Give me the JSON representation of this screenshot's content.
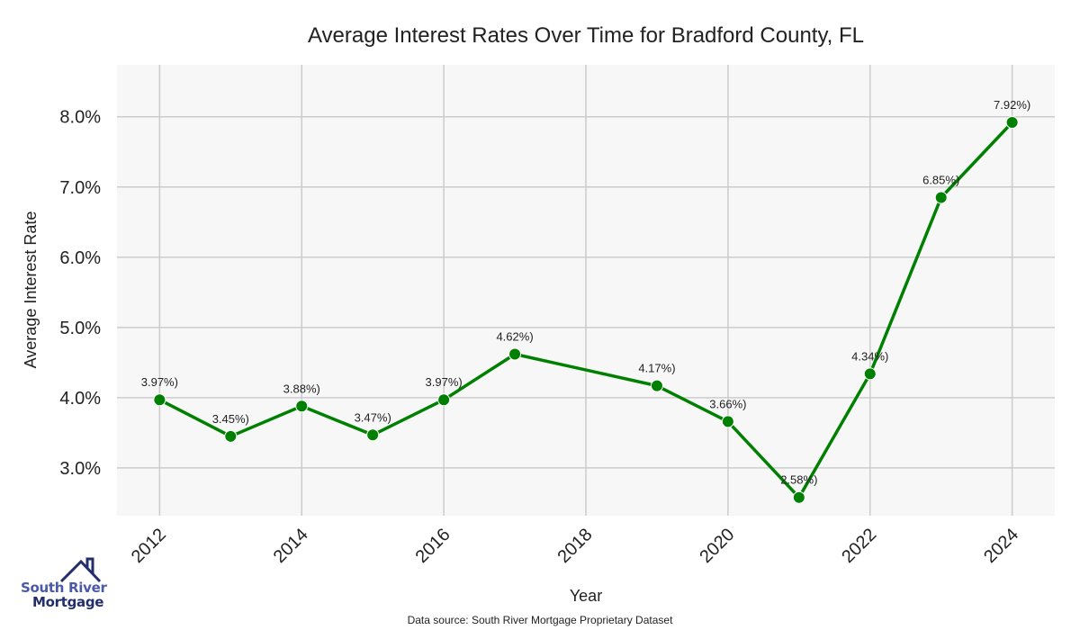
{
  "chart_data": {
    "type": "line",
    "title": "Average Interest Rates Over Time for Bradford County, FL",
    "xlabel": "Year",
    "ylabel": "Average Interest Rate",
    "x": [
      2012,
      2013,
      2014,
      2015,
      2016,
      2017,
      2019,
      2020,
      2021,
      2022,
      2023,
      2024
    ],
    "values": [
      3.97,
      3.45,
      3.88,
      3.47,
      3.97,
      4.62,
      4.17,
      3.66,
      2.58,
      4.34,
      6.85,
      7.92
    ],
    "data_labels": [
      "3.97%)",
      "3.45%)",
      "3.88%)",
      "3.47%)",
      "3.97%)",
      "4.62%)",
      "4.17%)",
      "3.66%)",
      "2.58%)",
      "4.34%)",
      "6.85%)",
      "7.92%)"
    ],
    "xticks": [
      2012,
      2014,
      2016,
      2018,
      2020,
      2022,
      2024
    ],
    "yticks": [
      3.0,
      4.0,
      5.0,
      6.0,
      7.0,
      8.0
    ],
    "ytick_labels": [
      "3.0%",
      "4.0%",
      "5.0%",
      "6.0%",
      "7.0%",
      "8.0%"
    ],
    "xlim": [
      2011.4,
      2024.6
    ],
    "ylim": [
      2.32,
      8.74
    ],
    "grid": true,
    "line_color": "#008000"
  },
  "footer": {
    "source": "Data source: South River Mortgage Proprietary Dataset"
  },
  "logo": {
    "line1": "South River",
    "line2": "Mortgage"
  }
}
